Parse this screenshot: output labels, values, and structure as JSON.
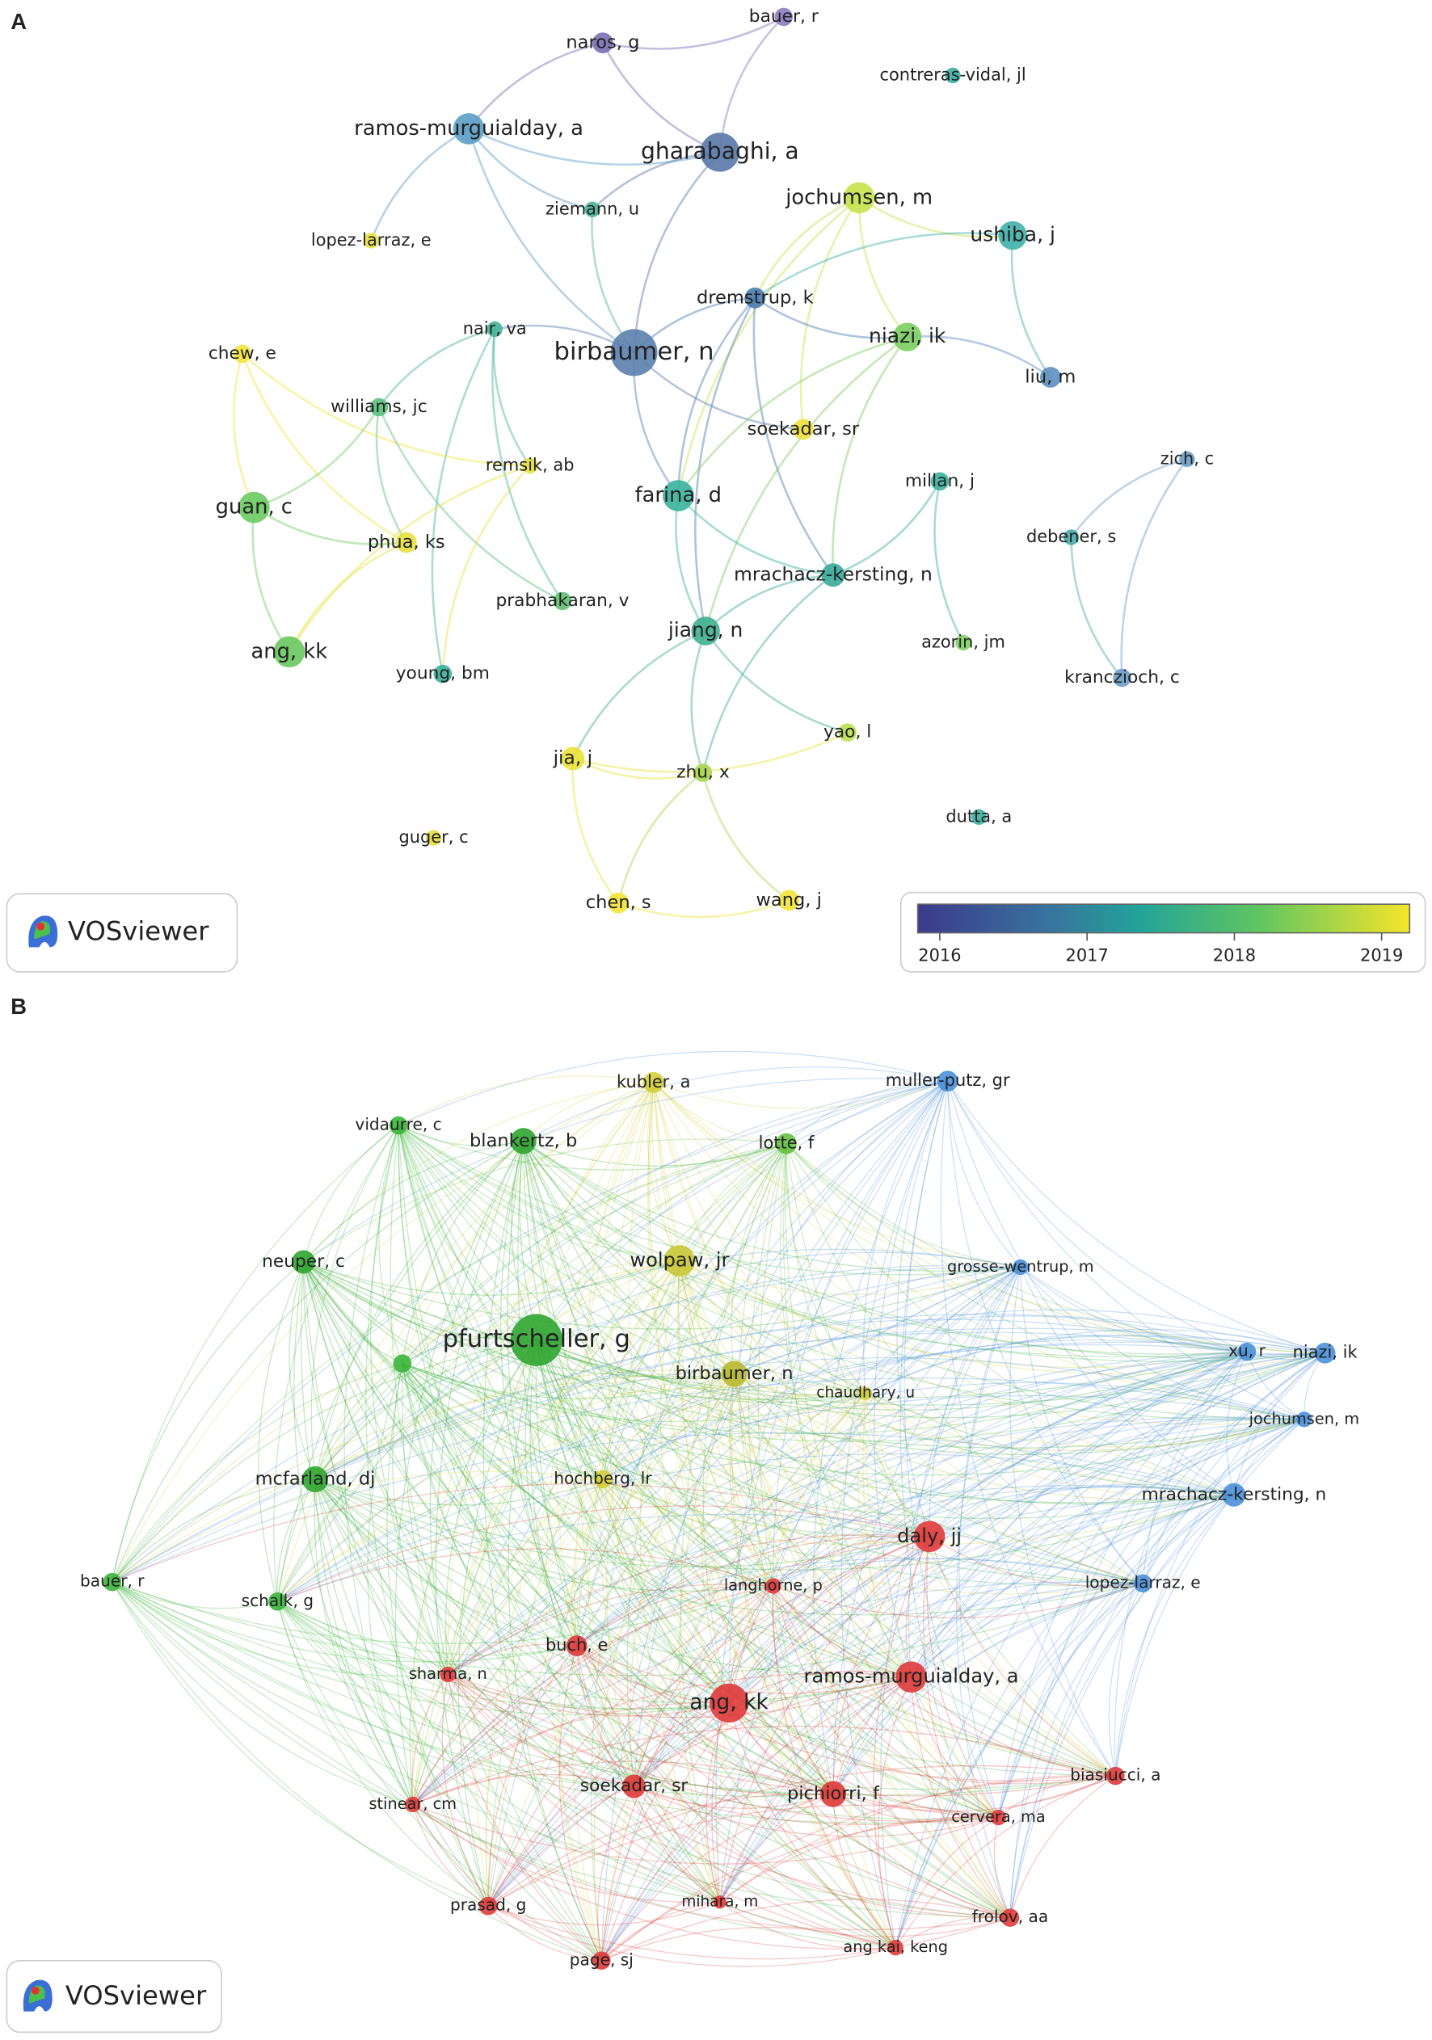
{
  "panels": [
    {
      "label": "A",
      "logo": "VOSviewer",
      "colorbar": {
        "lim": [
          2015.85,
          2019.19
        ],
        "ticks": [
          2016,
          2017,
          2018,
          2019
        ]
      },
      "nodes": [
        {
          "label": "naros, g",
          "color": "#7b6fb5"
        },
        {
          "label": "bauer, r",
          "color": "#8a7cc0"
        },
        {
          "label": "contreras-vidal, jl",
          "color": "#3aafa0"
        },
        {
          "label": "ramos-murguialday, a",
          "color": "#5a9ec5"
        },
        {
          "label": "gharabaghi, a",
          "color": "#5877a8"
        },
        {
          "label": "ziemann, u",
          "color": "#4db39a"
        },
        {
          "label": "jochumsen, m",
          "color": "#c5e34b"
        },
        {
          "label": "lopez-larraz, e",
          "color": "#e8e33f"
        },
        {
          "label": "ushiba, j",
          "color": "#3fb0a8"
        },
        {
          "label": "dremstrup, k",
          "color": "#4a7cb0"
        },
        {
          "label": "birbaumer, n",
          "color": "#5b80ad"
        },
        {
          "label": "niazi, ik",
          "color": "#7ccd5f"
        },
        {
          "label": "nair, va",
          "color": "#45b49a"
        },
        {
          "label": "chew, e",
          "color": "#f2e43a"
        },
        {
          "label": "liu, m",
          "color": "#5b8fc0"
        },
        {
          "label": "williams, jc",
          "color": "#5bc07c"
        },
        {
          "label": "soekadar, sr",
          "color": "#f0e03c"
        },
        {
          "label": "remsik, ab",
          "color": "#e8e040"
        },
        {
          "label": "millan, j",
          "color": "#3ab09a"
        },
        {
          "label": "farina, d",
          "color": "#3ab39c"
        },
        {
          "label": "zich, c",
          "color": "#6d9dc9"
        },
        {
          "label": "guan, c",
          "color": "#6ccb60"
        },
        {
          "label": "phua, ks",
          "color": "#e8e040"
        },
        {
          "label": "debener, s",
          "color": "#4aa8a8"
        },
        {
          "label": "mrachacz-kersting, n",
          "color": "#3aaa98"
        },
        {
          "label": "prabhakaran, v",
          "color": "#60c070"
        },
        {
          "label": "jiang, n",
          "color": "#3fb08f"
        },
        {
          "label": "ang, kk",
          "color": "#6ac862"
        },
        {
          "label": "azorin, jm",
          "color": "#7dd060"
        },
        {
          "label": "young, bm",
          "color": "#3aad98"
        },
        {
          "label": "kranczioch, c",
          "color": "#6d9dc9"
        },
        {
          "label": "yao, l",
          "color": "#b8e050"
        },
        {
          "label": "jia, j",
          "color": "#eae23a"
        },
        {
          "label": "zhu, x",
          "color": "#a8d550"
        },
        {
          "label": "dutta, a",
          "color": "#3ab0a0"
        },
        {
          "label": "guger, c",
          "color": "#e8dc3e"
        },
        {
          "label": "chen, s",
          "color": "#f2e43a"
        },
        {
          "label": "wang, j",
          "color": "#f2e43a"
        }
      ]
    },
    {
      "label": "B",
      "logo": "VOSviewer",
      "nodes": [
        {
          "label": "kubler, a",
          "color": "#d4cf3a"
        },
        {
          "label": "muller-putz, gr",
          "color": "#4a90d9"
        },
        {
          "label": "vidaurre, c",
          "color": "#3bb53b"
        },
        {
          "label": "blankertz, b",
          "color": "#2fa52f"
        },
        {
          "label": "lotte, f",
          "color": "#66c040"
        },
        {
          "label": "neuper, c",
          "color": "#2fa52f"
        },
        {
          "label": "wolpaw, jr",
          "color": "#c8c838"
        },
        {
          "label": "grosse-wentrup, m",
          "color": "#4a90d9"
        },
        {
          "label": "pfurtscheller, g",
          "color": "#2fa52f"
        },
        {
          "label": null,
          "color": "#3bb53b"
        },
        {
          "label": "xu, r",
          "color": "#4a90d9"
        },
        {
          "label": "niazi, ik",
          "color": "#4a90d9"
        },
        {
          "label": "birbaumer, n",
          "color": "#b8b830"
        },
        {
          "label": "chaudhary, u",
          "color": "#d4cf3a"
        },
        {
          "label": "jochumsen, m",
          "color": "#4a90d9"
        },
        {
          "label": "mcfarland, dj",
          "color": "#2fa52f"
        },
        {
          "label": "hochberg, lr",
          "color": "#d4cf3a"
        },
        {
          "label": "mrachacz-kersting, n",
          "color": "#4a90d9"
        },
        {
          "label": "daly, jj",
          "color": "#e03a3a"
        },
        {
          "label": "bauer, r",
          "color": "#3bb53b"
        },
        {
          "label": "langhorne, p",
          "color": "#e03a3a"
        },
        {
          "label": "lopez-larraz, e",
          "color": "#4a90d9"
        },
        {
          "label": "schalk, g",
          "color": "#3bb53b"
        },
        {
          "label": "buch, e",
          "color": "#e03a3a"
        },
        {
          "label": "sharma, n",
          "color": "#e03a3a"
        },
        {
          "label": "ramos-murguialday, a",
          "color": "#e03a3a"
        },
        {
          "label": "ang, kk",
          "color": "#e03a3a"
        },
        {
          "label": "soekadar, sr",
          "color": "#e03a3a"
        },
        {
          "label": "pichiorri, f",
          "color": "#e03a3a"
        },
        {
          "label": "biasiucci, a",
          "color": "#e03a3a"
        },
        {
          "label": "stinear, cm",
          "color": "#e03a3a"
        },
        {
          "label": "cervera, ma",
          "color": "#e03a3a"
        },
        {
          "label": "prasad, g",
          "color": "#e03a3a"
        },
        {
          "label": "mihara, m",
          "color": "#e03a3a"
        },
        {
          "label": "frolov, aa",
          "color": "#e03a3a"
        },
        {
          "label": "ang kai, keng",
          "color": "#e03a3a"
        },
        {
          "label": "page, sj",
          "color": "#e03a3a"
        }
      ]
    }
  ]
}
